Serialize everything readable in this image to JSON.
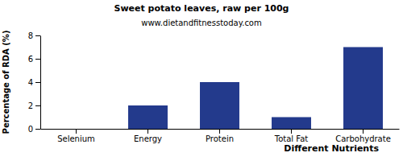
{
  "chart_data": {
    "type": "bar",
    "title": "Sweet potato leaves, raw per 100g",
    "subtitle": "www.dietandfitnesstoday.com",
    "x_label": "Different Nutrients",
    "y_label": "Percentage of RDA (%)",
    "categories": [
      "Selenium",
      "Energy",
      "Protein",
      "Total Fat",
      "Carbohydrate"
    ],
    "values": [
      0,
      2,
      4,
      1,
      7
    ],
    "color": "#233a8c",
    "ylim": [
      0,
      8
    ],
    "yticks": [
      0,
      2,
      4,
      6,
      8
    ],
    "grid": false
  }
}
